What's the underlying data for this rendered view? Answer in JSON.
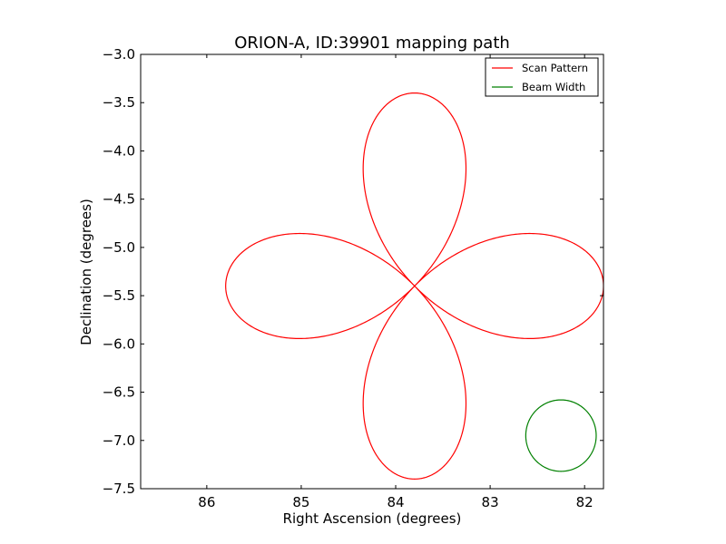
{
  "chart_data": {
    "type": "line",
    "title": "ORION-A, ID:39901 mapping path",
    "xlabel": "Right Ascension (degrees)",
    "ylabel": "Declination (degrees)",
    "xlim": [
      86.7,
      81.8
    ],
    "ylim": [
      -7.5,
      -3.0
    ],
    "x_inverted": true,
    "xticks": [
      86,
      85,
      84,
      83,
      82
    ],
    "xtick_labels": [
      "86",
      "85",
      "84",
      "83",
      "82"
    ],
    "yticks": [
      -3.0,
      -3.5,
      -4.0,
      -4.5,
      -5.0,
      -5.5,
      -6.0,
      -6.5,
      -7.0,
      -7.5
    ],
    "ytick_labels": [
      "−3.0",
      "−3.5",
      "−4.0",
      "−4.5",
      "−5.0",
      "−5.5",
      "−6.0",
      "−6.5",
      "−7.0",
      "−7.5"
    ],
    "grid": false,
    "legend_position": "top-right",
    "series": [
      {
        "name": "Scan Pattern",
        "color": "#ff0000",
        "shape": "four-petal rose curve",
        "center": [
          83.8,
          -5.4
        ],
        "ra_extent": [
          81.8,
          85.8
        ],
        "dec_extent": [
          -7.4,
          -3.4
        ],
        "start_point": [
          85.82,
          -5.4
        ]
      },
      {
        "name": "Beam Width",
        "color": "#008000",
        "shape": "circle",
        "center": [
          82.25,
          -6.95
        ],
        "radius_dec": 0.37
      }
    ]
  }
}
